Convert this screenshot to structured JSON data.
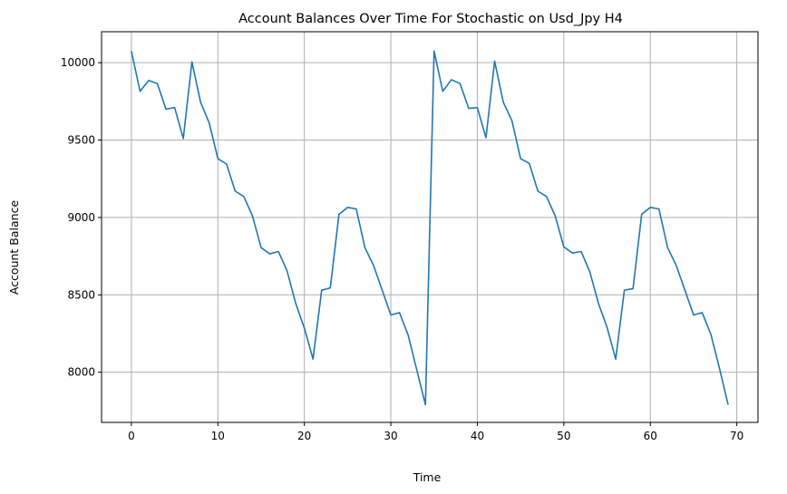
{
  "chart_data": {
    "type": "line",
    "title": "Account Balances Over Time For Stochastic on Usd_Jpy H4",
    "xlabel": "Time",
    "ylabel": "Account Balance",
    "xlim": [
      -3.45,
      72.45
    ],
    "ylim": [
      7676,
      10200
    ],
    "xticks": [
      0,
      10,
      20,
      30,
      40,
      50,
      60,
      70
    ],
    "yticks": [
      8000,
      8500,
      9000,
      9500,
      10000
    ],
    "grid": true,
    "series_color": "#1f77b4",
    "series": [
      {
        "x": [
          0,
          1,
          2,
          3,
          4,
          5,
          6,
          7,
          8,
          9,
          10,
          11,
          12,
          13,
          14,
          15,
          16,
          17,
          18,
          19,
          20,
          21,
          22,
          23,
          24,
          25,
          26,
          27,
          28,
          29,
          30,
          31,
          32,
          33,
          34,
          35,
          36,
          37,
          38,
          39,
          40,
          41,
          42,
          43,
          44,
          45,
          46,
          47,
          48,
          49,
          50,
          51,
          52,
          53,
          54,
          55,
          56,
          57,
          58,
          59,
          60,
          61,
          62,
          63,
          64,
          65,
          66,
          67,
          68,
          69
        ],
        "values": [
          10075,
          9815,
          9885,
          9865,
          9700,
          9710,
          9510,
          10005,
          9745,
          9610,
          9380,
          9345,
          9170,
          9135,
          9010,
          8805,
          8765,
          8780,
          8655,
          8445,
          8285,
          8085,
          8530,
          8545,
          9020,
          9065,
          9055,
          8805,
          8690,
          8530,
          8370,
          8385,
          8240,
          8015,
          7790,
          10075,
          9815,
          9890,
          9865,
          9705,
          9710,
          9515,
          10010,
          9745,
          9625,
          9380,
          9350,
          9170,
          9135,
          9010,
          8810,
          8770,
          8780,
          8650,
          8445,
          8290,
          8085,
          8530,
          8540,
          9020,
          9065,
          9055,
          8805,
          8690,
          8530,
          8370,
          8385,
          8245,
          8025,
          7790
        ]
      }
    ]
  }
}
